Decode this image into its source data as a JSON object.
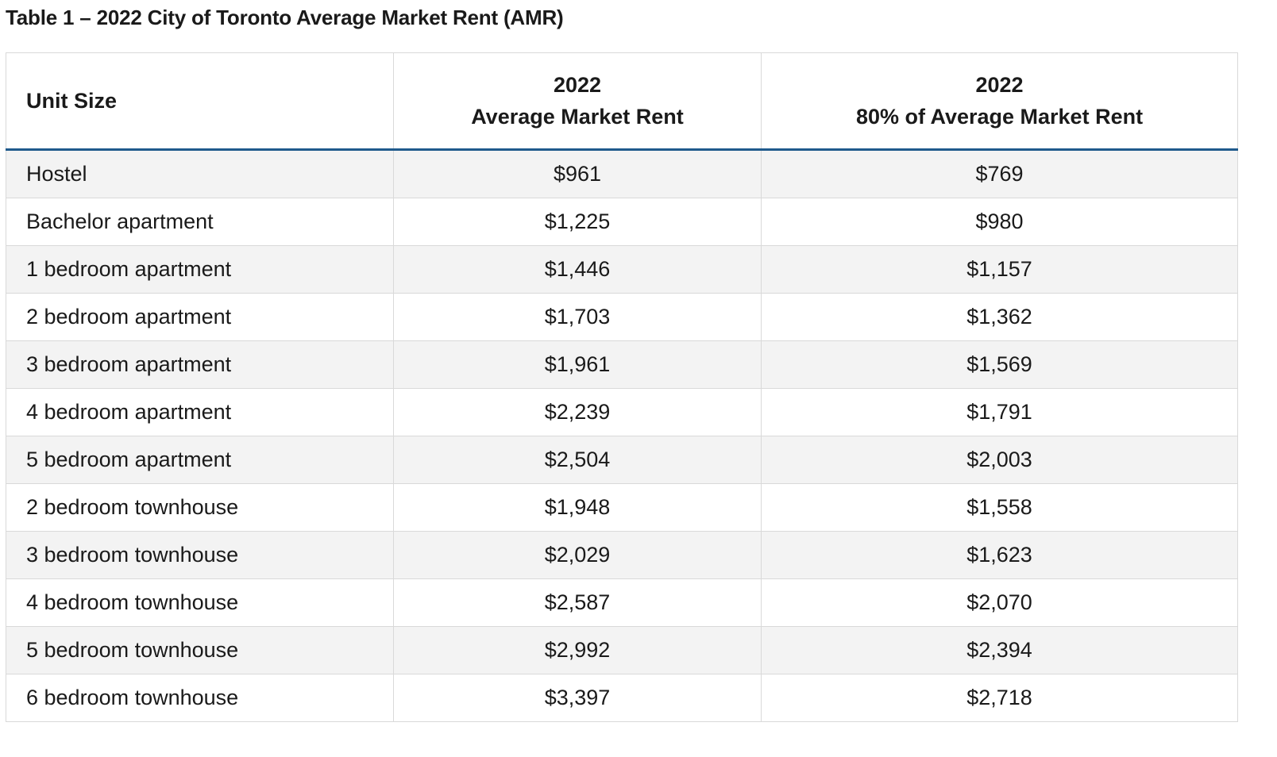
{
  "caption": "Table 1 – 2022 City of Toronto Average Market Rent (AMR)",
  "table": {
    "headers": [
      {
        "line1": "Unit Size",
        "line2": ""
      },
      {
        "line1": "2022",
        "line2": "Average Market Rent"
      },
      {
        "line1": "2022",
        "line2": "80% of Average Market Rent"
      }
    ],
    "rows": [
      {
        "unit": "Hostel",
        "amr": "$961",
        "amr80": "$769"
      },
      {
        "unit": "Bachelor apartment",
        "amr": "$1,225",
        "amr80": "$980"
      },
      {
        "unit": "1 bedroom apartment",
        "amr": "$1,446",
        "amr80": "$1,157"
      },
      {
        "unit": "2 bedroom apartment",
        "amr": "$1,703",
        "amr80": "$1,362"
      },
      {
        "unit": "3 bedroom apartment",
        "amr": "$1,961",
        "amr80": "$1,569"
      },
      {
        "unit": "4 bedroom apartment",
        "amr": "$2,239",
        "amr80": "$1,791"
      },
      {
        "unit": "5 bedroom apartment",
        "amr": "$2,504",
        "amr80": "$2,003"
      },
      {
        "unit": "2 bedroom townhouse",
        "amr": "$1,948",
        "amr80": "$1,558"
      },
      {
        "unit": "3 bedroom townhouse",
        "amr": "$2,029",
        "amr80": "$1,623"
      },
      {
        "unit": "4 bedroom townhouse",
        "amr": "$2,587",
        "amr80": "$2,070"
      },
      {
        "unit": "5 bedroom townhouse",
        "amr": "$2,992",
        "amr80": "$2,394"
      },
      {
        "unit": "6 bedroom townhouse",
        "amr": "$3,397",
        "amr80": "$2,718"
      }
    ]
  },
  "colors": {
    "header_rule": "#1f5a8c",
    "stripe": "#f3f3f3",
    "border": "#d9d9d9"
  }
}
